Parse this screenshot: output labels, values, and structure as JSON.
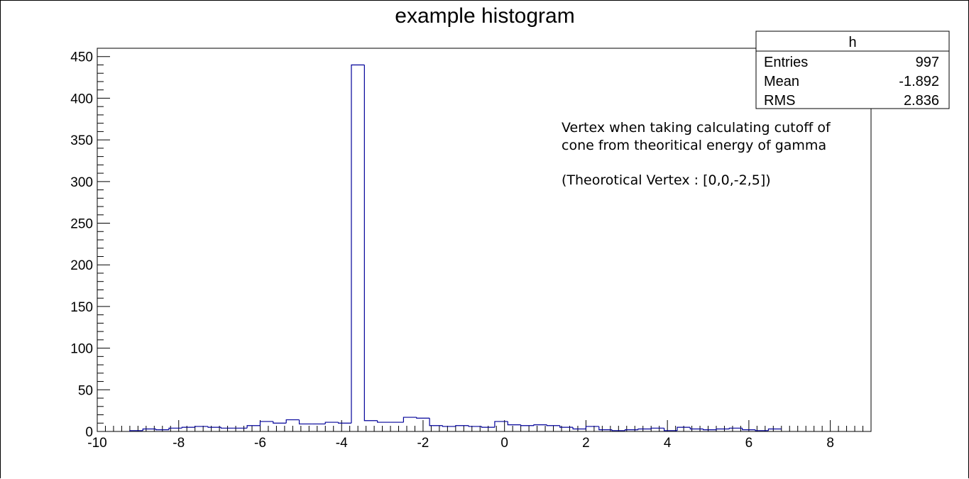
{
  "chart_data": {
    "type": "bar",
    "title": "example histogram",
    "xlabel": "",
    "ylabel": "",
    "xlim": [
      -10,
      9
    ],
    "ylim": [
      0,
      460
    ],
    "grid": false,
    "bin_width": 0.32,
    "bin_start": -9.2,
    "values": [
      1,
      3,
      2,
      4,
      5,
      6,
      5,
      4,
      4,
      7,
      12,
      10,
      14,
      9,
      9,
      11,
      10,
      440,
      13,
      11,
      11,
      17,
      16,
      7,
      6,
      7,
      6,
      5,
      12,
      8,
      7,
      8,
      7,
      5,
      3,
      6,
      2,
      1,
      2,
      3,
      4,
      1,
      5,
      3,
      2,
      3,
      4,
      2,
      1,
      3
    ],
    "line_color": "#000099",
    "x_ticks": [
      "-10",
      "-8",
      "-6",
      "-4",
      "-2",
      "0",
      "2",
      "4",
      "6",
      "8"
    ],
    "y_ticks": [
      "0",
      "50",
      "100",
      "150",
      "200",
      "250",
      "300",
      "350",
      "400",
      "450"
    ]
  },
  "stats_box": {
    "name": "h",
    "rows": [
      {
        "label": "Entries",
        "value": "997"
      },
      {
        "label": "Mean",
        "value": "-1.892"
      },
      {
        "label": "RMS",
        "value": "2.836"
      }
    ]
  },
  "annotation": {
    "line1": "Vertex when taking calculating cutoff of",
    "line2": "cone from theoritical energy of gamma",
    "line3": "(Theorotical Vertex : [0,0,-2,5])"
  }
}
